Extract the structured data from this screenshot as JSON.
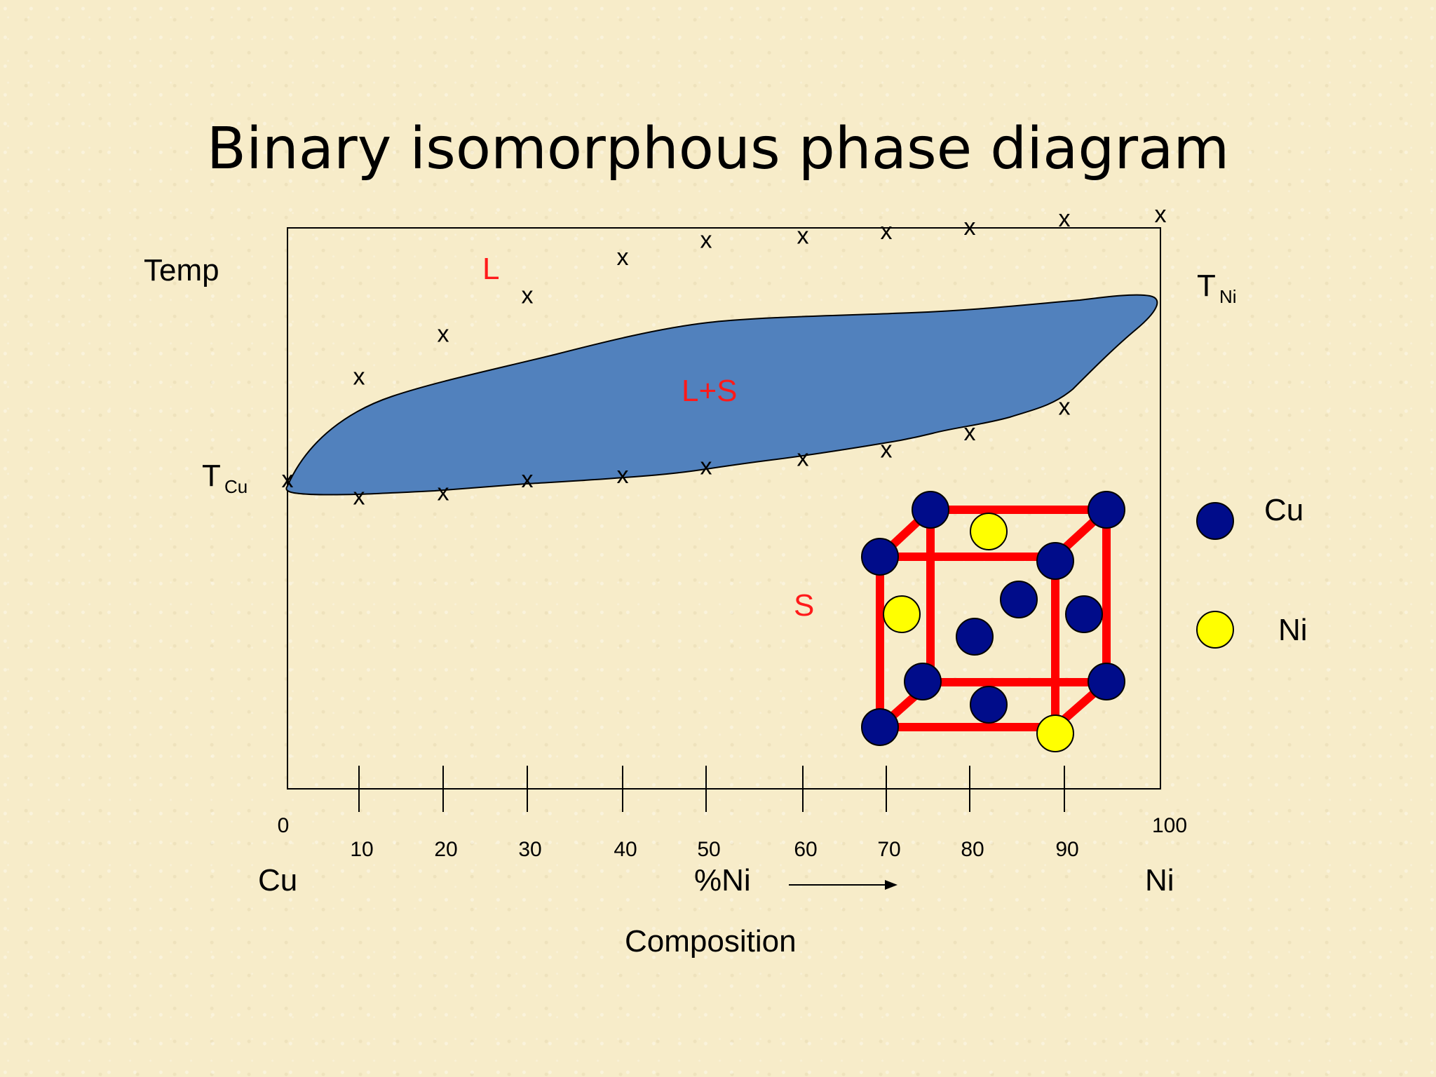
{
  "slide": {
    "title": "Binary isomorphous phase diagram"
  },
  "diagram": {
    "y_label": "Temp",
    "t_cu": {
      "main": "T",
      "sub": "Cu"
    },
    "t_ni": {
      "main": "T",
      "sub": "Ni"
    },
    "regions": {
      "liquid": "L",
      "two_phase": "L+S",
      "solid": "S"
    },
    "x_axis": {
      "ticks": [
        "0",
        "10",
        "20",
        "30",
        "40",
        "50",
        "60",
        "70",
        "80",
        "90",
        "100"
      ],
      "left_end": "Cu",
      "right_end": "Ni",
      "quantity": "%Ni",
      "title": "Composition"
    },
    "marker_glyph": "x",
    "liquidus_temps": [
      0,
      24,
      34,
      43,
      52,
      56,
      57,
      58,
      59,
      61,
      62
    ],
    "solidus_temps": [
      0,
      -4,
      -3,
      0,
      1,
      3,
      5,
      7,
      11,
      17,
      62
    ],
    "legend": [
      {
        "label": "Cu",
        "color": "#000c8a"
      },
      {
        "label": "Ni",
        "color": "#ffff00"
      }
    ],
    "colors": {
      "two_phase_fill": "#5181bd",
      "region_label": "#ff1a1a",
      "lattice_edge": "#ff0000"
    }
  }
}
